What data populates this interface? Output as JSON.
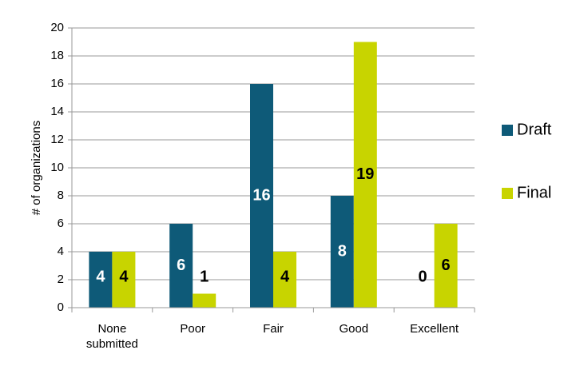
{
  "chart_data": {
    "type": "bar",
    "y_label": "# of organizations",
    "categories": [
      "None submitted",
      "Poor",
      "Fair",
      "Good",
      "Excellent"
    ],
    "series": [
      {
        "name": "Draft",
        "color": "#0e5a78",
        "values": [
          4,
          6,
          16,
          8,
          0
        ]
      },
      {
        "name": "Final",
        "color": "#c8d400",
        "values": [
          4,
          1,
          4,
          19,
          6
        ]
      }
    ],
    "ylim": [
      0,
      20
    ],
    "yticks": [
      0,
      2,
      4,
      6,
      8,
      10,
      12,
      14,
      16,
      18,
      20
    ],
    "grid": true,
    "legend": "right"
  }
}
